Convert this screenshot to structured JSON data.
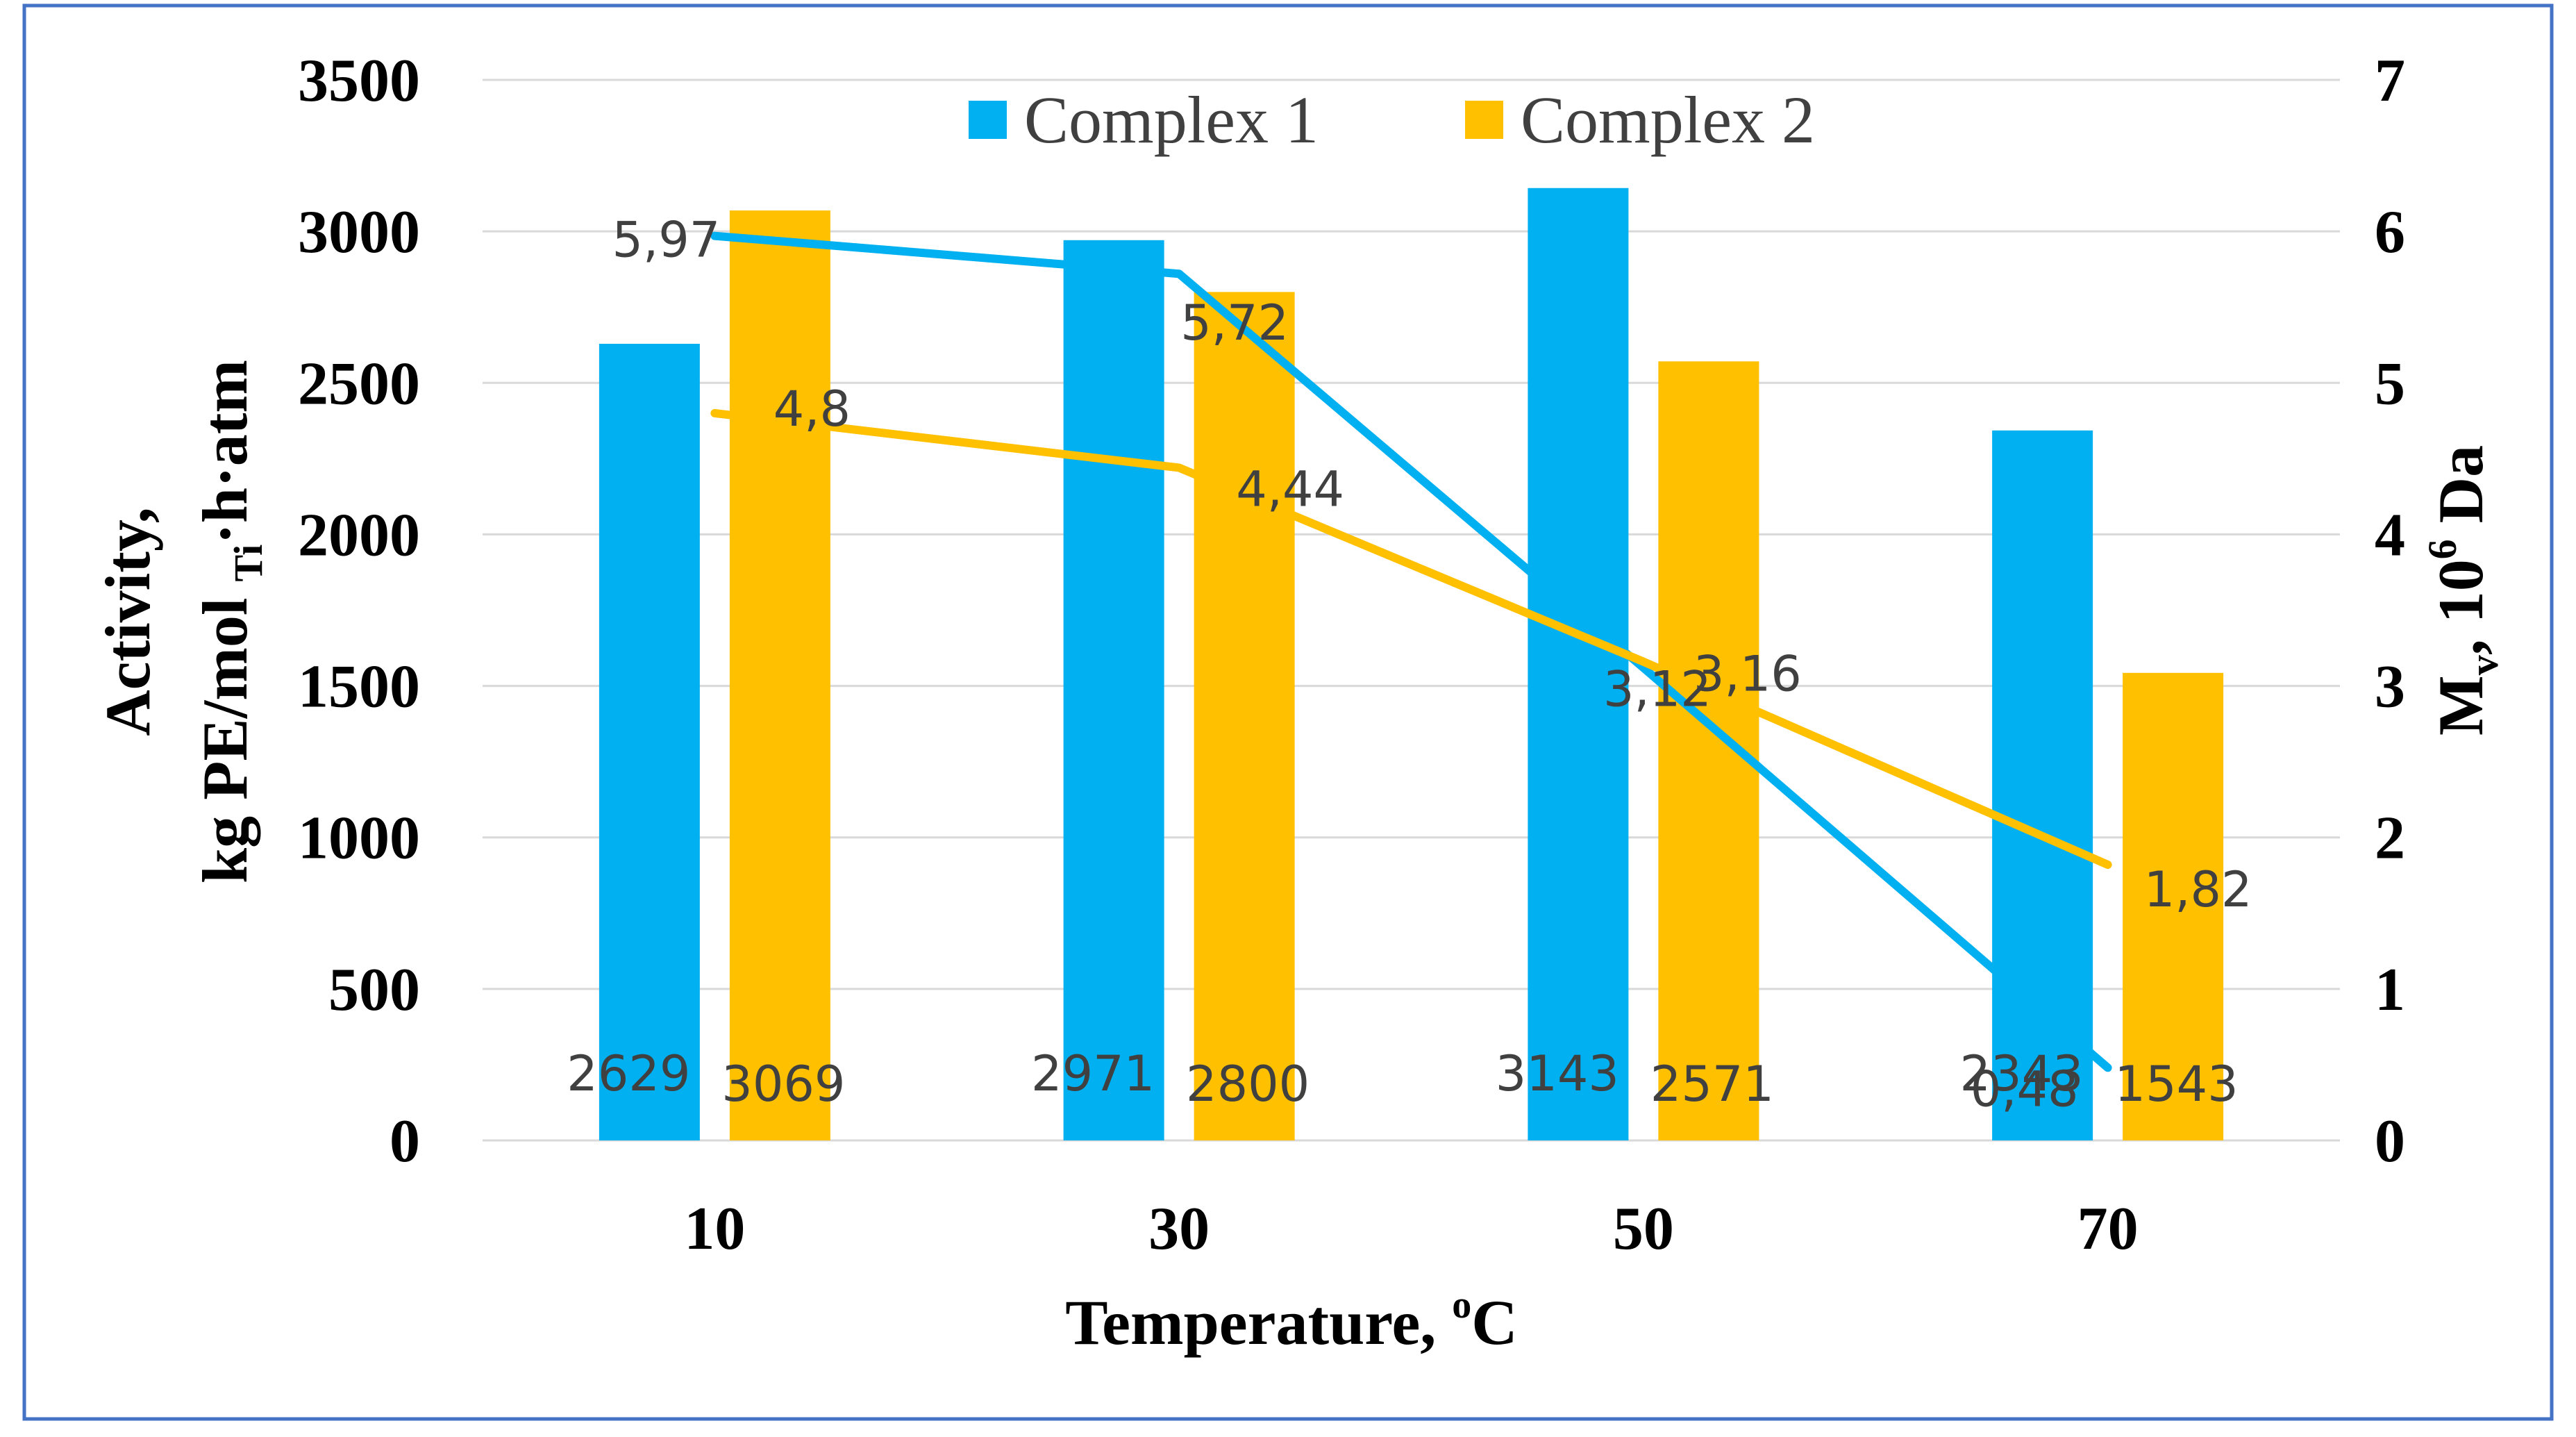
{
  "chart_data": {
    "type": "bar",
    "x_title": "Temperature, ",
    "x_title_degree": "o",
    "x_title_unit": "C",
    "y_left_title_line1": "Activity,",
    "y_left_title_line2_a": "kg PE/mol ",
    "y_left_title_line2_sub": "Ti",
    "y_left_title_line2_b": "·h·atm",
    "y_right_title_a": "M",
    "y_right_title_sub": "v",
    "y_right_title_b": ", 10",
    "y_right_title_sup": "6",
    "y_right_title_c": " Da",
    "ylim_left": [
      0,
      3500
    ],
    "ylim_right": [
      0,
      7
    ],
    "left_ticks": [
      "0",
      "500",
      "1000",
      "1500",
      "2000",
      "2500",
      "3000",
      "3500"
    ],
    "right_ticks": [
      "0",
      "1",
      "2",
      "3",
      "4",
      "5",
      "6",
      "7"
    ],
    "categories": [
      "10",
      "30",
      "50",
      "70"
    ],
    "legend": [
      "Complex 1",
      "Complex 2"
    ],
    "series": [
      {
        "name": "Complex 1",
        "color": "#00B0F0",
        "values": [
          2629,
          2971,
          3143,
          2343
        ],
        "labels": [
          "2629",
          "2971",
          "3143",
          "2343"
        ]
      },
      {
        "name": "Complex 2",
        "color": "#FFC000",
        "values": [
          3069,
          2800,
          2571,
          1543
        ],
        "labels": [
          "3069",
          "2800",
          "2571",
          "1543"
        ]
      }
    ],
    "line_series": [
      {
        "name": "Complex 1",
        "color": "#00B0F0",
        "values": [
          5.97,
          5.72,
          3.12,
          0.48
        ],
        "labels": [
          "5,97",
          "5,72",
          "3,12",
          "0,48"
        ]
      },
      {
        "name": "Complex 2",
        "color": "#FFC000",
        "values": [
          4.8,
          4.44,
          3.16,
          1.82
        ],
        "labels": [
          "4,8",
          "4,44",
          "3,16",
          "1,82"
        ]
      }
    ]
  }
}
